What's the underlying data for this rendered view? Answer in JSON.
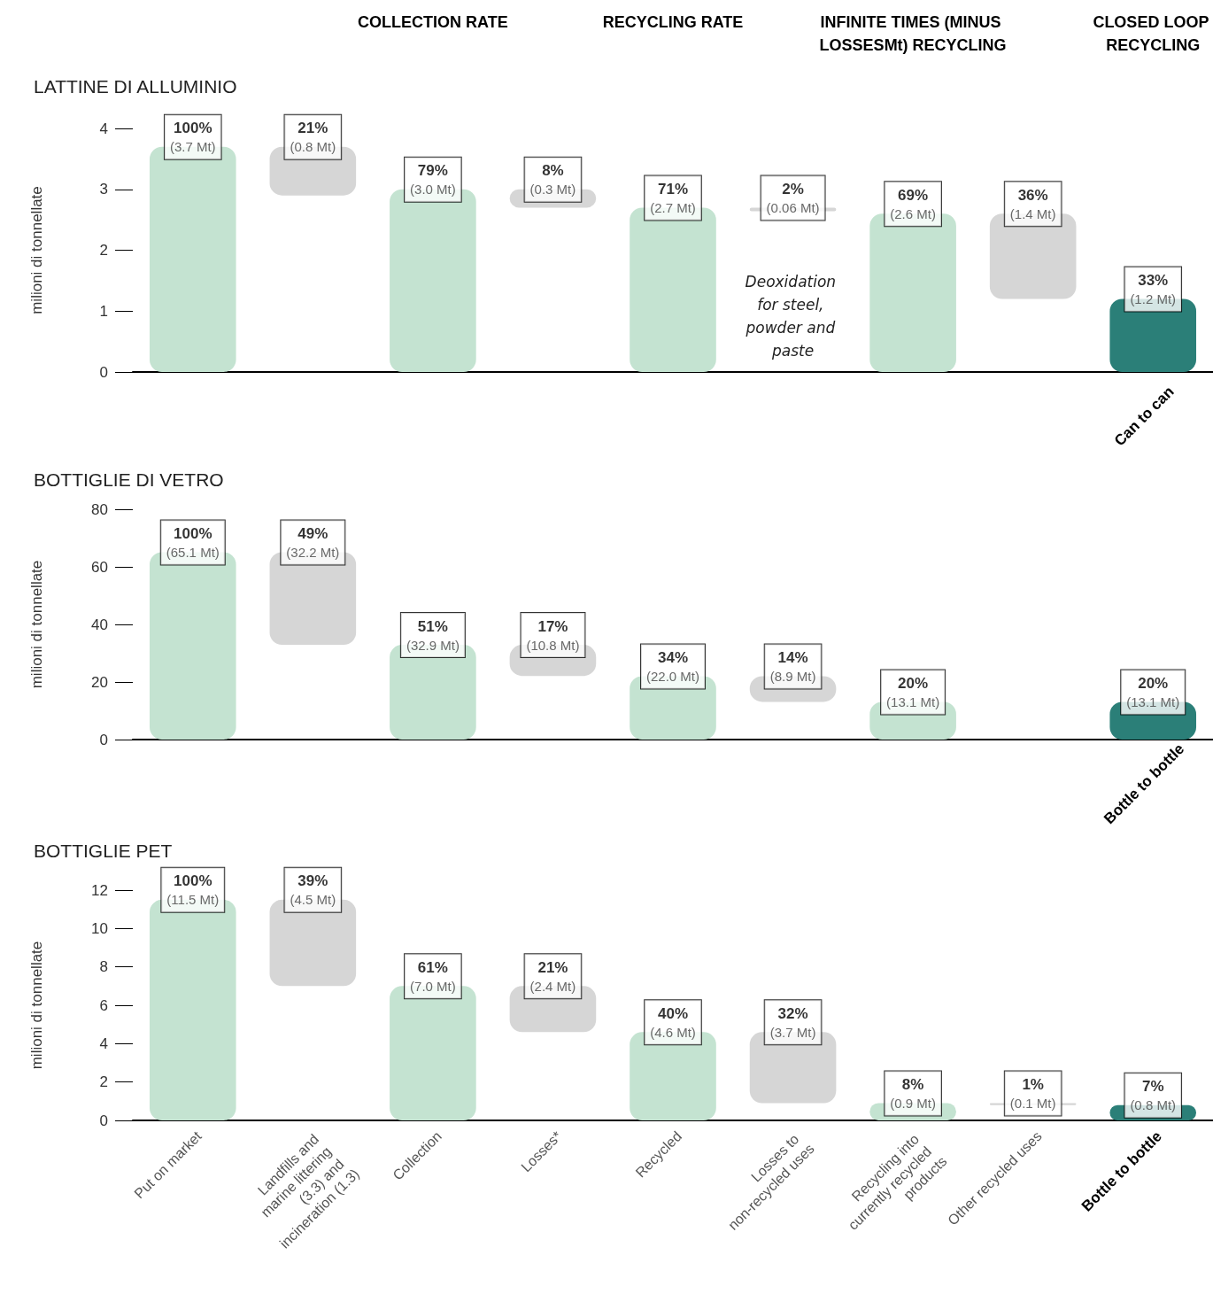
{
  "chart_data": [
    {
      "type": "bar",
      "title": "LATTINE DI ALLUMINIO",
      "ylabel": "milioni di tonnellate",
      "tick_labels": "y",
      "categories": [
        "Put on market",
        "Landfills and marine littering (3.3) and incineration (1.3)",
        "Collection",
        "Losses*",
        "Recycled",
        "Losses to non-recycled uses",
        "Recycling into currently recycled products",
        "Other recycled uses",
        "Bottle to bottle"
      ],
      "values": [
        3.7,
        0.8,
        3.0,
        0.3,
        2.7,
        0.06,
        2.6,
        1.4,
        1.2
      ],
      "base": [
        0,
        2.9,
        0,
        2.7,
        0,
        2.64,
        0,
        1.2,
        0
      ],
      "colors": [
        "#c4e3d1",
        "#d6d6d6",
        "#c4e3d1",
        "#d6d6d6",
        "#c4e3d1",
        "#d6d6d6",
        "#c4e3d1",
        "#d6d6d6",
        "#2b7f78"
      ],
      "value_labels": [
        "100%\n(3.7 Mt)",
        "21%\n(0.8 Mt)",
        "79%\n(3.0 Mt)",
        "8%\n(0.3 Mt)",
        "71%\n(2.7 Mt)",
        "2%\n(0.06 Mt)",
        "69%\n(2.6 Mt)",
        "36%\n(1.4 Mt)",
        "33%\n(1.2 Mt)"
      ],
      "ylim": [
        0,
        4
      ],
      "yticks": [
        0,
        1,
        2,
        3,
        4
      ],
      "annotations": [
        "COLLECTION RATE",
        "RECYCLING RATE",
        "INFINITE TIMES (MINUS LOSSESMt) RECYCLING",
        "CLOSED LOOP RECYCLING",
        "Deoxidation for steel, powder and paste",
        "Can to can"
      ]
    },
    {
      "type": "bar",
      "title": "BOTTIGLIE DI VETRO",
      "ylabel": "milioni di tonnellate",
      "tick_labels": "y",
      "categories": [
        "Put on market",
        "Landfills and marine littering (3.3) and incineration (1.3)",
        "Collection",
        "Losses*",
        "Recycled",
        "Losses to non-recycled uses",
        "Recycling into currently recycled products",
        "Other recycled uses",
        "Bottle to bottle"
      ],
      "values": [
        65.1,
        32.2,
        32.9,
        10.8,
        22.0,
        8.9,
        13.1,
        null,
        13.1
      ],
      "base": [
        0,
        32.9,
        0,
        22.1,
        0,
        13.1,
        0,
        null,
        0
      ],
      "colors": [
        "#c4e3d1",
        "#d6d6d6",
        "#c4e3d1",
        "#d6d6d6",
        "#c4e3d1",
        "#d6d6d6",
        "#c4e3d1",
        null,
        "#2b7f78"
      ],
      "value_labels": [
        "100%\n(65.1 Mt)",
        "49%\n(32.2 Mt)",
        "51%\n(32.9 Mt)",
        "17%\n(10.8 Mt)",
        "34%\n(22.0 Mt)",
        "14%\n(8.9 Mt)",
        "20%\n(13.1 Mt)",
        null,
        "20%\n(13.1 Mt)"
      ],
      "ylim": [
        0,
        80
      ],
      "yticks": [
        0,
        20,
        40,
        60,
        80
      ],
      "annotations": [
        "Bottle to bottle"
      ]
    },
    {
      "type": "bar",
      "title": "BOTTIGLIE PET",
      "ylabel": "milioni di tonnellate",
      "categories": [
        "Put on market",
        "Landfills and marine littering (3.3) and incineration (1.3)",
        "Collection",
        "Losses*",
        "Recycled",
        "Losses to non-recycled uses",
        "Recycling into currently recycled products",
        "Other recycled uses",
        "Bottle to bottle"
      ],
      "values": [
        11.5,
        4.5,
        7.0,
        2.4,
        4.6,
        3.7,
        0.9,
        0.1,
        0.8
      ],
      "base": [
        0,
        7.0,
        0,
        4.6,
        0,
        0.9,
        0,
        0.8,
        0
      ],
      "colors": [
        "#c4e3d1",
        "#d6d6d6",
        "#c4e3d1",
        "#d6d6d6",
        "#c4e3d1",
        "#d6d6d6",
        "#c4e3d1",
        "#d6d6d6",
        "#2b7f78"
      ],
      "value_labels": [
        "100%\n(11.5 Mt)",
        "39%\n(4.5 Mt)",
        "61%\n(7.0 Mt)",
        "21%\n(2.4 Mt)",
        "40%\n(4.6 Mt)",
        "32%\n(3.7 Mt)",
        "8%\n(0.9 Mt)",
        "1%\n(0.1 Mt)",
        "7%\n(0.8 Mt)"
      ],
      "ylim": [
        0,
        12
      ],
      "yticks": [
        0,
        2,
        4,
        6,
        8,
        10,
        12
      ]
    }
  ]
}
